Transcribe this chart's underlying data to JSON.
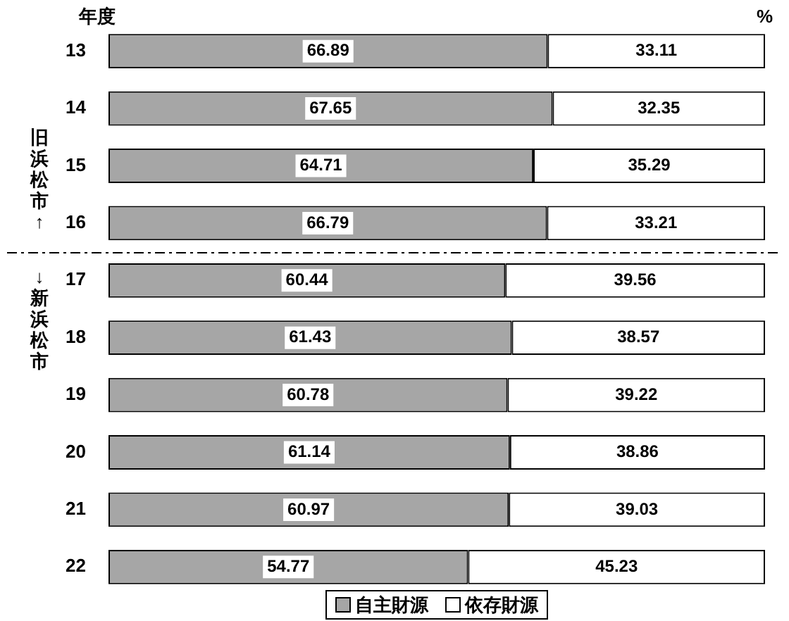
{
  "chart_data": {
    "type": "bar",
    "orientation": "horizontal",
    "stacked": true,
    "ylabel": "年度",
    "xlabel": "%",
    "annotations": [
      "旧浜松市 ↑",
      "↓ 新浜松市"
    ],
    "categories": [
      "13",
      "14",
      "15",
      "16",
      "17",
      "18",
      "19",
      "20",
      "21",
      "22"
    ],
    "series": [
      {
        "name": "自主財源",
        "color": "#a6a6a6",
        "values": [
          66.89,
          67.65,
          64.71,
          66.79,
          60.44,
          61.43,
          60.78,
          61.14,
          60.97,
          54.77
        ]
      },
      {
        "name": "依存財源",
        "color": "#ffffff",
        "values": [
          33.11,
          32.35,
          35.29,
          33.21,
          39.56,
          38.57,
          39.22,
          38.86,
          39.03,
          45.23
        ]
      }
    ],
    "xlim": [
      0,
      100
    ],
    "tick_labels": "y",
    "data_labels": true,
    "legend": "bottom",
    "grid": false
  }
}
